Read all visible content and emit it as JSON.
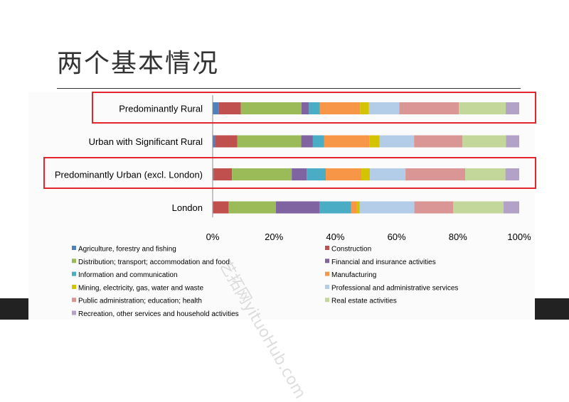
{
  "slide": {
    "title": "两个基本情况",
    "watermark": "艺拓网yituoHub.com"
  },
  "chart_data": {
    "type": "bar",
    "orientation": "horizontal",
    "stacked": "percent",
    "categories": [
      "Predominantly Rural",
      "Urban with Significant Rural",
      "Predominantly Urban (excl. London)",
      "London"
    ],
    "highlighted_categories": [
      "Predominantly Rural",
      "Predominantly Urban (excl. London)"
    ],
    "xlim": [
      0,
      100
    ],
    "xticks": [
      "0%",
      "20%",
      "40%",
      "60%",
      "80%",
      "100%"
    ],
    "legend_position": "bottom",
    "series": [
      {
        "name": "Agriculture, forestry and fishing",
        "color": "#4f81bd",
        "values": [
          2.0,
          0.8,
          0.3,
          0.2
        ]
      },
      {
        "name": "Construction",
        "color": "#c0504d",
        "values": [
          7.2,
          7.2,
          6.0,
          5.0
        ]
      },
      {
        "name": "Distribution; transport; accommodation and food",
        "color": "#9bbb59",
        "values": [
          19.8,
          20.9,
          19.5,
          15.4
        ]
      },
      {
        "name": "Financial and insurance activities",
        "color": "#8064a2",
        "values": [
          2.4,
          3.8,
          4.9,
          14.2
        ]
      },
      {
        "name": "Information and communication",
        "color": "#4bacc6",
        "values": [
          3.6,
          3.7,
          6.2,
          10.4
        ]
      },
      {
        "name": "Manufacturing",
        "color": "#f79646",
        "values": [
          13.1,
          14.8,
          11.6,
          1.8
        ]
      },
      {
        "name": "Mining, electricity, gas, water and waste",
        "color": "#d4c300",
        "values": [
          2.9,
          3.2,
          2.8,
          1.0
        ]
      },
      {
        "name": "Professional and administrative services",
        "color": "#b3cde8",
        "values": [
          9.9,
          11.3,
          11.6,
          17.8
        ]
      },
      {
        "name": "Public administration; education; health",
        "color": "#d99694",
        "values": [
          19.4,
          15.8,
          19.5,
          12.7
        ]
      },
      {
        "name": "Real estate activities",
        "color": "#c4d79b",
        "values": [
          15.3,
          14.2,
          13.1,
          16.4
        ]
      },
      {
        "name": "Recreation, other services and household activities",
        "color": "#b3a2c7",
        "values": [
          4.4,
          4.3,
          4.5,
          5.1
        ]
      }
    ]
  }
}
